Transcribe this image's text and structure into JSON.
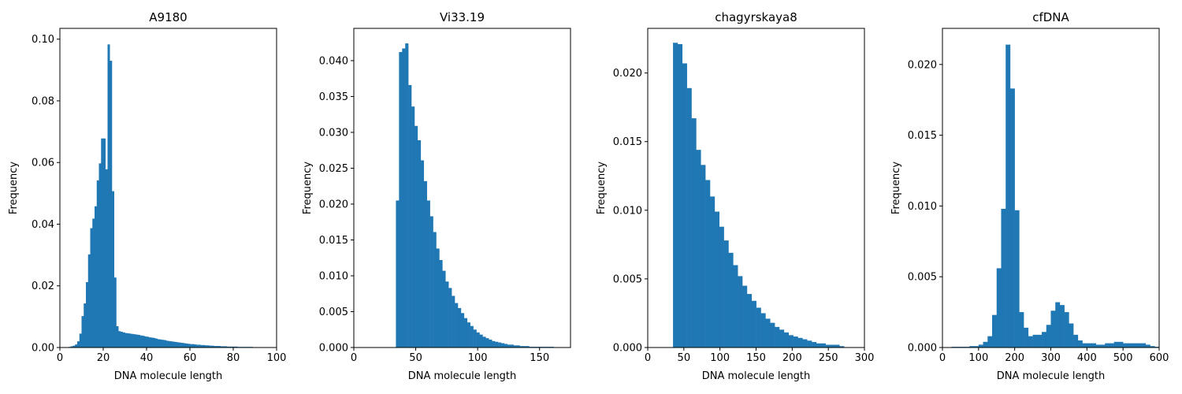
{
  "chart_data": [
    {
      "type": "bar",
      "title": "A9180",
      "xlabel": "DNA molecule length",
      "ylabel": "Frequency",
      "xlim": [
        0,
        100
      ],
      "ylim": [
        0,
        0.1035
      ],
      "xticks": [
        0,
        20,
        40,
        60,
        80,
        100
      ],
      "yticks": [
        0.0,
        0.02,
        0.04,
        0.06,
        0.08,
        0.1
      ],
      "yticklabels": [
        "0.00",
        "0.02",
        "0.04",
        "0.06",
        "0.08",
        "0.10"
      ],
      "bin_width": 1,
      "bins": [
        [
          4,
          0.0002
        ],
        [
          5,
          0.0004
        ],
        [
          6,
          0.0006
        ],
        [
          7,
          0.001
        ],
        [
          8,
          0.002
        ],
        [
          9,
          0.0045
        ],
        [
          10,
          0.0102
        ],
        [
          11,
          0.0143
        ],
        [
          12,
          0.0212
        ],
        [
          13,
          0.0302
        ],
        [
          14,
          0.0387
        ],
        [
          15,
          0.0418
        ],
        [
          16,
          0.0458
        ],
        [
          17,
          0.0542
        ],
        [
          18,
          0.0597
        ],
        [
          19,
          0.0678
        ],
        [
          20,
          0.0678
        ],
        [
          21,
          0.0578
        ],
        [
          22,
          0.0983
        ],
        [
          23,
          0.093
        ],
        [
          24,
          0.0507
        ],
        [
          25,
          0.0227
        ],
        [
          26,
          0.0069
        ],
        [
          27,
          0.0053
        ],
        [
          28,
          0.0051
        ],
        [
          29,
          0.0049
        ],
        [
          30,
          0.0047
        ],
        [
          31,
          0.0046
        ],
        [
          32,
          0.0045
        ],
        [
          33,
          0.0044
        ],
        [
          34,
          0.0043
        ],
        [
          35,
          0.0042
        ],
        [
          36,
          0.0041
        ],
        [
          37,
          0.0039
        ],
        [
          38,
          0.0038
        ],
        [
          39,
          0.0036
        ],
        [
          40,
          0.0035
        ],
        [
          41,
          0.0033
        ],
        [
          42,
          0.0032
        ],
        [
          43,
          0.0031
        ],
        [
          44,
          0.0029
        ],
        [
          45,
          0.0027
        ],
        [
          46,
          0.0026
        ],
        [
          47,
          0.0025
        ],
        [
          48,
          0.0024
        ],
        [
          49,
          0.0022
        ],
        [
          50,
          0.0021
        ],
        [
          51,
          0.002
        ],
        [
          52,
          0.0019
        ],
        [
          53,
          0.0018
        ],
        [
          54,
          0.0017
        ],
        [
          55,
          0.0016
        ],
        [
          56,
          0.0015
        ],
        [
          57,
          0.0014
        ],
        [
          58,
          0.0013
        ],
        [
          59,
          0.0012
        ],
        [
          60,
          0.0011
        ],
        [
          61,
          0.0011
        ],
        [
          62,
          0.001
        ],
        [
          63,
          0.0009
        ],
        [
          64,
          0.0009
        ],
        [
          65,
          0.0008
        ],
        [
          66,
          0.0008
        ],
        [
          67,
          0.0007
        ],
        [
          68,
          0.0007
        ],
        [
          69,
          0.0006
        ],
        [
          70,
          0.0006
        ],
        [
          71,
          0.0005
        ],
        [
          72,
          0.0005
        ],
        [
          73,
          0.0005
        ],
        [
          74,
          0.0004
        ],
        [
          75,
          0.0004
        ],
        [
          76,
          0.0004
        ],
        [
          77,
          0.0003
        ],
        [
          78,
          0.0003
        ],
        [
          79,
          0.0003
        ],
        [
          80,
          0.0003
        ],
        [
          81,
          0.0003
        ],
        [
          82,
          0.0002
        ],
        [
          83,
          0.0002
        ],
        [
          84,
          0.0002
        ],
        [
          85,
          0.0002
        ],
        [
          86,
          0.0002
        ],
        [
          87,
          0.0002
        ],
        [
          88,
          0.0002
        ],
        [
          89,
          0.0001
        ],
        [
          90,
          0.0001
        ],
        [
          91,
          0.0001
        ],
        [
          92,
          0.0001
        ],
        [
          93,
          0.0001
        ],
        [
          94,
          0.0001
        ],
        [
          95,
          0.0001
        ],
        [
          96,
          0.0001
        ],
        [
          97,
          0.0001
        ]
      ]
    },
    {
      "type": "bar",
      "title": "Vi33.19",
      "xlabel": "DNA molecule length",
      "ylabel": "Frequency",
      "xlim": [
        0,
        175
      ],
      "ylim": [
        0,
        0.0445
      ],
      "xticks": [
        0,
        50,
        100,
        150
      ],
      "yticks": [
        0.0,
        0.005,
        0.01,
        0.015,
        0.02,
        0.025,
        0.03,
        0.035,
        0.04
      ],
      "yticklabels": [
        "0.000",
        "0.005",
        "0.010",
        "0.015",
        "0.020",
        "0.025",
        "0.030",
        "0.035",
        "0.040"
      ],
      "bin_width": 2.5,
      "bins": [
        [
          34,
          0.0205
        ],
        [
          36.5,
          0.0412
        ],
        [
          39,
          0.0417
        ],
        [
          41.5,
          0.0424
        ],
        [
          44,
          0.0366
        ],
        [
          46.5,
          0.0336
        ],
        [
          49,
          0.0309
        ],
        [
          51.5,
          0.0289
        ],
        [
          54,
          0.0261
        ],
        [
          56.5,
          0.0232
        ],
        [
          59,
          0.0205
        ],
        [
          61.5,
          0.0183
        ],
        [
          64,
          0.0161
        ],
        [
          66.5,
          0.0138
        ],
        [
          69,
          0.0122
        ],
        [
          71.5,
          0.0107
        ],
        [
          74,
          0.0092
        ],
        [
          76.5,
          0.0083
        ],
        [
          79,
          0.0072
        ],
        [
          81.5,
          0.0062
        ],
        [
          84,
          0.0055
        ],
        [
          86.5,
          0.0048
        ],
        [
          89,
          0.0041
        ],
        [
          91.5,
          0.0035
        ],
        [
          94,
          0.003
        ],
        [
          96.5,
          0.0025
        ],
        [
          99,
          0.0021
        ],
        [
          101.5,
          0.0018
        ],
        [
          104,
          0.0015
        ],
        [
          106.5,
          0.0013
        ],
        [
          109,
          0.0011
        ],
        [
          111.5,
          0.0009
        ],
        [
          114,
          0.0008
        ],
        [
          116.5,
          0.0007
        ],
        [
          119,
          0.0006
        ],
        [
          121.5,
          0.0005
        ],
        [
          124,
          0.0004
        ],
        [
          126.5,
          0.0004
        ],
        [
          129,
          0.0003
        ],
        [
          131.5,
          0.0003
        ],
        [
          134,
          0.0002
        ],
        [
          136.5,
          0.0002
        ],
        [
          139,
          0.0002
        ],
        [
          141.5,
          0.0001
        ],
        [
          144,
          0.0001
        ],
        [
          146.5,
          0.0001
        ],
        [
          149,
          0.0001
        ],
        [
          151.5,
          0.0001
        ],
        [
          154,
          0.0001
        ],
        [
          156.5,
          0.0001
        ],
        [
          159,
          0.0001
        ]
      ]
    },
    {
      "type": "bar",
      "title": "chagyrskaya8",
      "xlabel": "DNA molecule length",
      "ylabel": "Frequency",
      "xlim": [
        0,
        300
      ],
      "ylim": [
        0,
        0.02325
      ],
      "xticks": [
        0,
        50,
        100,
        150,
        200,
        250,
        300
      ],
      "yticks": [
        0.0,
        0.005,
        0.01,
        0.015,
        0.02
      ],
      "yticklabels": [
        "0.000",
        "0.005",
        "0.010",
        "0.015",
        "0.020"
      ],
      "bin_width": 6.4,
      "bins": [
        [
          35,
          0.0222
        ],
        [
          41.4,
          0.0221
        ],
        [
          47.8,
          0.0207
        ],
        [
          54.2,
          0.0189
        ],
        [
          60.6,
          0.0167
        ],
        [
          67,
          0.0144
        ],
        [
          73.4,
          0.0133
        ],
        [
          79.8,
          0.0122
        ],
        [
          86.2,
          0.011
        ],
        [
          92.6,
          0.0099
        ],
        [
          99,
          0.0088
        ],
        [
          105.4,
          0.0078
        ],
        [
          111.8,
          0.0069
        ],
        [
          118.2,
          0.006
        ],
        [
          124.6,
          0.0052
        ],
        [
          131,
          0.0045
        ],
        [
          137.4,
          0.0039
        ],
        [
          143.8,
          0.0034
        ],
        [
          150.2,
          0.0029
        ],
        [
          156.6,
          0.0025
        ],
        [
          163,
          0.0021
        ],
        [
          169.4,
          0.0018
        ],
        [
          175.8,
          0.0015
        ],
        [
          182.2,
          0.0013
        ],
        [
          188.6,
          0.0011
        ],
        [
          195,
          0.0009
        ],
        [
          201.4,
          0.0008
        ],
        [
          207.8,
          0.0007
        ],
        [
          214.2,
          0.0006
        ],
        [
          220.6,
          0.0005
        ],
        [
          227,
          0.0004
        ],
        [
          233.4,
          0.0003
        ],
        [
          239.8,
          0.0003
        ],
        [
          246.2,
          0.0002
        ],
        [
          252.6,
          0.0002
        ],
        [
          259,
          0.0002
        ],
        [
          265.4,
          0.0001
        ]
      ]
    },
    {
      "type": "bar",
      "title": "cfDNA",
      "xlabel": "DNA molecule length",
      "ylabel": "Frequency",
      "xlim": [
        0,
        600
      ],
      "ylim": [
        0,
        0.02255
      ],
      "xticks": [
        0,
        100,
        200,
        300,
        400,
        500,
        600
      ],
      "yticks": [
        0.0,
        0.005,
        0.01,
        0.015,
        0.02
      ],
      "yticklabels": [
        "0.000",
        "0.005",
        "0.010",
        "0.015",
        "0.020"
      ],
      "bin_width": 12.5,
      "bins": [
        [
          25,
          5e-05
        ],
        [
          37.5,
          5e-05
        ],
        [
          50,
          5e-05
        ],
        [
          62.5,
          5e-05
        ],
        [
          75,
          0.0001
        ],
        [
          87.5,
          0.0001
        ],
        [
          100,
          0.0002
        ],
        [
          112.5,
          0.0004
        ],
        [
          125,
          0.0008
        ],
        [
          137.5,
          0.0023
        ],
        [
          150,
          0.0056
        ],
        [
          162.5,
          0.0098
        ],
        [
          175,
          0.0214
        ],
        [
          187.5,
          0.0183
        ],
        [
          200,
          0.0097
        ],
        [
          212.5,
          0.0025
        ],
        [
          225,
          0.0014
        ],
        [
          237.5,
          0.0008
        ],
        [
          250,
          0.0009
        ],
        [
          262.5,
          0.0009
        ],
        [
          275,
          0.0011
        ],
        [
          287.5,
          0.0016
        ],
        [
          300,
          0.0026
        ],
        [
          312.5,
          0.0032
        ],
        [
          325,
          0.003
        ],
        [
          337.5,
          0.0025
        ],
        [
          350,
          0.0017
        ],
        [
          362.5,
          0.0009
        ],
        [
          375,
          0.0005
        ],
        [
          387.5,
          0.0003
        ],
        [
          400,
          0.0003
        ],
        [
          412.5,
          0.0003
        ],
        [
          425,
          0.0002
        ],
        [
          437.5,
          0.0002
        ],
        [
          450,
          0.0003
        ],
        [
          462.5,
          0.0003
        ],
        [
          475,
          0.0004
        ],
        [
          487.5,
          0.0004
        ],
        [
          500,
          0.0003
        ],
        [
          512.5,
          0.0003
        ],
        [
          525,
          0.0003
        ],
        [
          537.5,
          0.0003
        ],
        [
          550,
          0.0003
        ],
        [
          562.5,
          0.0002
        ],
        [
          575,
          0.0001
        ],
        [
          587.5,
          5e-05
        ]
      ]
    }
  ],
  "colors": {
    "bar": "#1f77b4",
    "axis": "#000000",
    "background": "#ffffff"
  }
}
